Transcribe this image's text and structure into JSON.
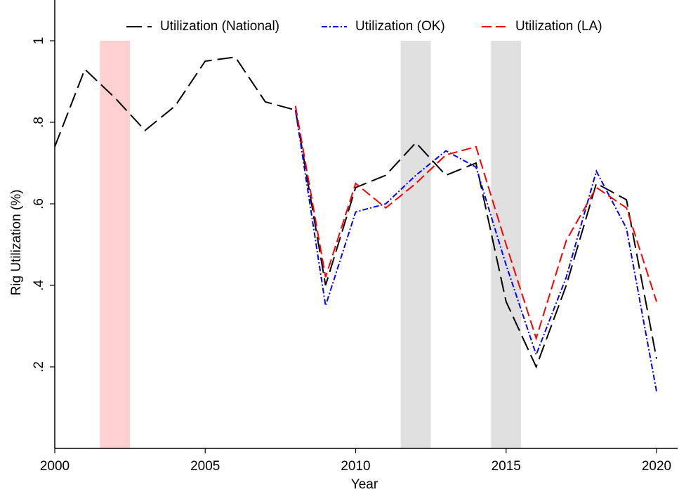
{
  "chart_data": {
    "type": "line",
    "x_label": "Year",
    "y_label": "Rig Utilization (%)",
    "x": [
      2000,
      2001,
      2002,
      2003,
      2004,
      2005,
      2006,
      2007,
      2008,
      2009,
      2010,
      2011,
      2012,
      2013,
      2014,
      2015,
      2016,
      2017,
      2018,
      2019,
      2020
    ],
    "series": [
      {
        "name": "Utilization (National)",
        "color": "#000000",
        "dash": "22 8",
        "values": [
          0.74,
          0.93,
          0.86,
          0.78,
          0.84,
          0.95,
          0.96,
          0.85,
          0.83,
          0.4,
          0.64,
          0.67,
          0.75,
          0.67,
          0.7,
          0.36,
          0.2,
          0.4,
          0.65,
          0.61,
          0.22
        ]
      },
      {
        "name": "Utilization (OK)",
        "color": "#0000ff",
        "dash": "8 3 2 3",
        "values": [
          null,
          null,
          null,
          null,
          null,
          null,
          null,
          null,
          0.83,
          0.35,
          0.58,
          0.6,
          0.67,
          0.73,
          0.69,
          0.45,
          0.23,
          0.42,
          0.68,
          0.54,
          0.14
        ]
      },
      {
        "name": "Utilization (LA)",
        "color": "#ff0000",
        "dash": "14 6",
        "values": [
          null,
          null,
          null,
          null,
          null,
          null,
          null,
          null,
          0.84,
          0.42,
          0.65,
          0.59,
          0.65,
          0.72,
          0.74,
          0.5,
          0.27,
          0.51,
          0.64,
          0.59,
          0.36
        ]
      }
    ],
    "shaded_regions": [
      {
        "start": 2001.5,
        "end": 2002.5,
        "color": "#ffd0d0"
      },
      {
        "start": 2011.5,
        "end": 2012.5,
        "color": "#e0e0e0"
      },
      {
        "start": 2014.5,
        "end": 2015.5,
        "color": "#e0e0e0"
      }
    ],
    "xlim": [
      2000,
      2020.7
    ],
    "ylim": [
      0,
      1.1
    ],
    "xticks": [
      2000,
      2005,
      2010,
      2015,
      2020
    ],
    "yticks": [
      {
        "value": 0.2,
        "label": ".2"
      },
      {
        "value": 0.4,
        "label": ".4"
      },
      {
        "value": 0.6,
        "label": ".6"
      },
      {
        "value": 0.8,
        "label": ".8"
      },
      1
    ],
    "legend": "top"
  }
}
